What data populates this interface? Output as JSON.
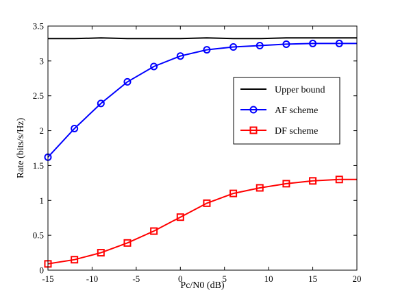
{
  "chart_data": {
    "type": "line",
    "title": "",
    "xlabel": "Pc/N0 (dB)",
    "ylabel": "Rate (bits/s/Hz)",
    "xlim": [
      -15,
      20
    ],
    "ylim": [
      0,
      3.5
    ],
    "xticks": [
      "-15",
      "-10",
      "-5",
      "0",
      "5",
      "10",
      "15",
      "20"
    ],
    "yticks": [
      "0",
      "0.5",
      "1",
      "1.5",
      "2",
      "2.5",
      "3",
      "3.5"
    ],
    "grid": false,
    "legend_position": "right",
    "series": [
      {
        "name": "Upper bound",
        "color": "#000000",
        "marker": "none",
        "x": [
          -15,
          -12,
          -9,
          -6,
          -3,
          0,
          3,
          6,
          9,
          12,
          15,
          18,
          20
        ],
        "values": [
          3.32,
          3.32,
          3.33,
          3.32,
          3.32,
          3.32,
          3.33,
          3.32,
          3.32,
          3.33,
          3.33,
          3.33,
          3.33
        ]
      },
      {
        "name": "AF scheme",
        "color": "#0000ff",
        "marker": "circle",
        "x": [
          -15,
          -12,
          -9,
          -6,
          -3,
          0,
          3,
          6,
          9,
          12,
          15,
          18,
          20
        ],
        "values": [
          1.62,
          2.03,
          2.39,
          2.7,
          2.92,
          3.07,
          3.16,
          3.2,
          3.22,
          3.24,
          3.25,
          3.25,
          3.25
        ],
        "marker_until": 18
      },
      {
        "name": "DF scheme",
        "color": "#ff0000",
        "marker": "square",
        "x": [
          -15,
          -12,
          -9,
          -6,
          -3,
          0,
          3,
          6,
          9,
          12,
          15,
          18,
          20
        ],
        "values": [
          0.09,
          0.15,
          0.25,
          0.39,
          0.56,
          0.76,
          0.96,
          1.1,
          1.18,
          1.24,
          1.28,
          1.3,
          1.3
        ],
        "marker_until": 18
      }
    ]
  }
}
